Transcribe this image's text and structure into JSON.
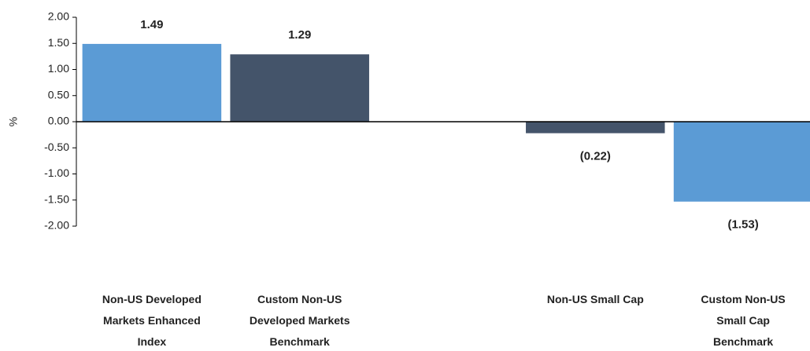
{
  "chart_data": {
    "type": "bar",
    "y_label": "%",
    "categories": [
      "Non-US Developed Markets Enhanced Index",
      "Custom Non-US Developed Markets Benchmark",
      null,
      "Non-US Small Cap",
      "Custom Non-US Small Cap Benchmark"
    ],
    "values": [
      1.49,
      1.29,
      null,
      -0.22,
      -1.53
    ],
    "value_labels": [
      "1.49",
      "1.29",
      null,
      "(0.22)",
      "(1.53)"
    ],
    "colors": [
      "#5b9bd5",
      "#44546a",
      null,
      "#44546a",
      "#5b9bd5"
    ],
    "ylim": [
      -2,
      2
    ],
    "yticks": [
      {
        "value": -2,
        "label": "-2.00"
      },
      {
        "value": -1.5,
        "label": "-1.50"
      },
      {
        "value": -1,
        "label": "-1.00"
      },
      {
        "value": -0.5,
        "label": "-0.50"
      },
      {
        "value": 0,
        "label": "0.00"
      },
      {
        "value": 0.5,
        "label": "0.50"
      },
      {
        "value": 1,
        "label": "1.00"
      },
      {
        "value": 1.5,
        "label": "1.50"
      },
      {
        "value": 2,
        "label": "2.00"
      }
    ],
    "grid": false
  }
}
